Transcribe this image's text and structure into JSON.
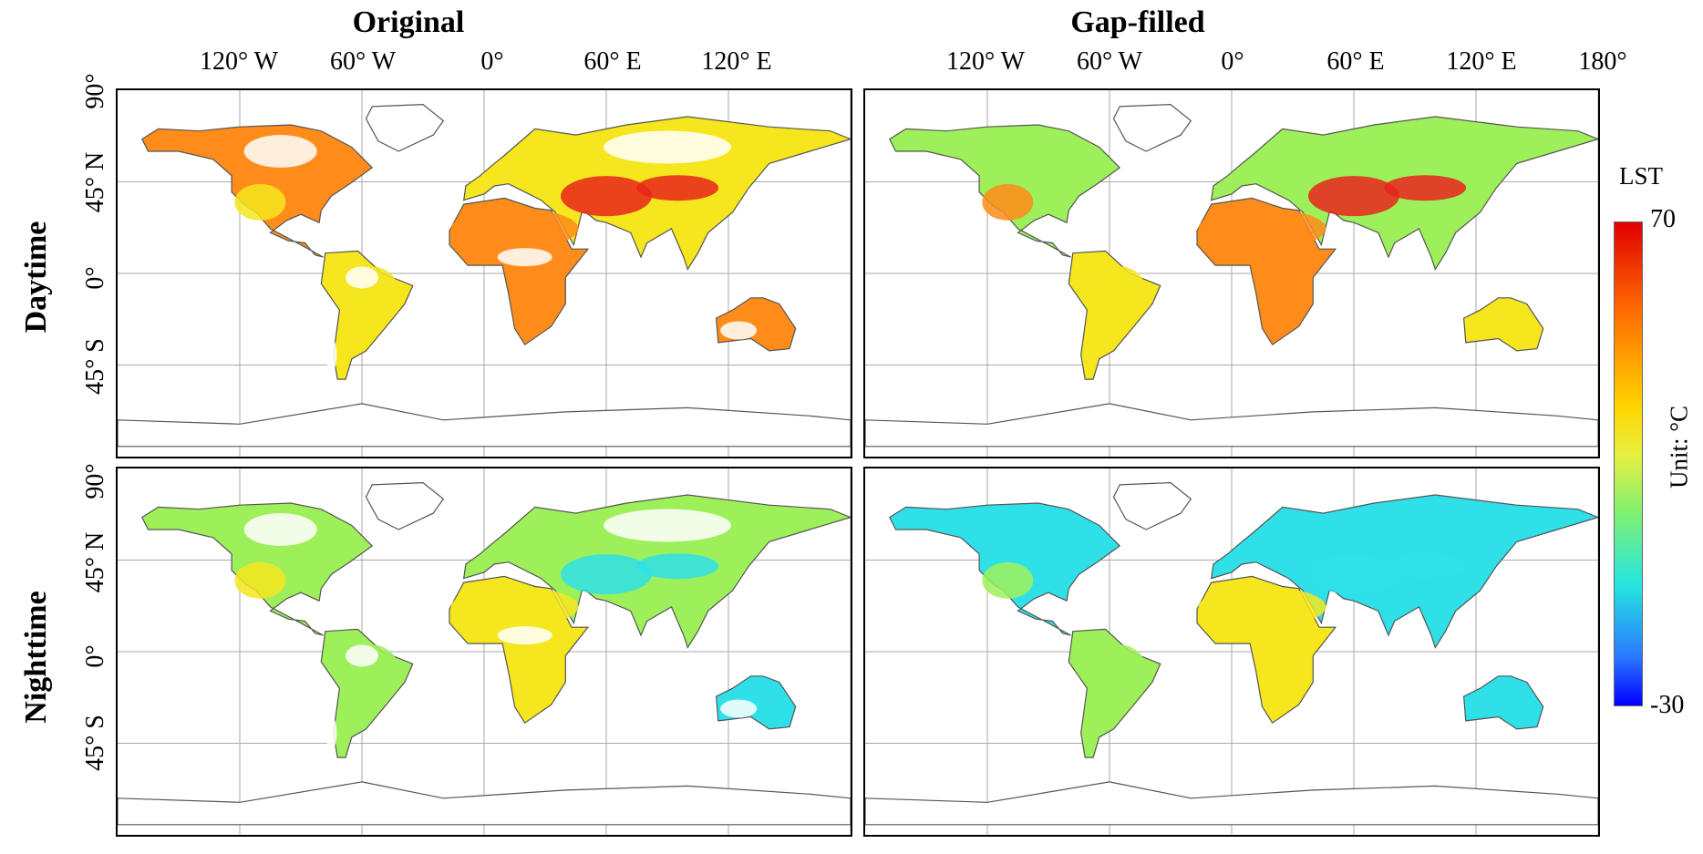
{
  "columns": {
    "original": "Original",
    "gapfilled": "Gap-filled"
  },
  "rows": {
    "day": "Daytime",
    "night": "Nighttime"
  },
  "lon_labels_left": [
    "120° W",
    "60° W",
    "0°",
    "60° E",
    "120° E"
  ],
  "lon_labels_right": [
    "120° W",
    "60° W",
    "0°",
    "60° E",
    "120° E",
    "180°"
  ],
  "lat_labels": [
    "90°",
    "45° N",
    "0°",
    "45° S"
  ],
  "legend": {
    "title": "LST",
    "max": "70",
    "min": "-30",
    "unit": "Unit: °C"
  },
  "colors": {
    "hot": "#e8251b",
    "warm": "#ff8c1a",
    "mild": "#f5e61e",
    "cool": "#9ef05a",
    "cold": "#2fe0e8",
    "frozen": "#2a5cff",
    "coast": "#555555",
    "grid": "#aaaaaa"
  }
}
